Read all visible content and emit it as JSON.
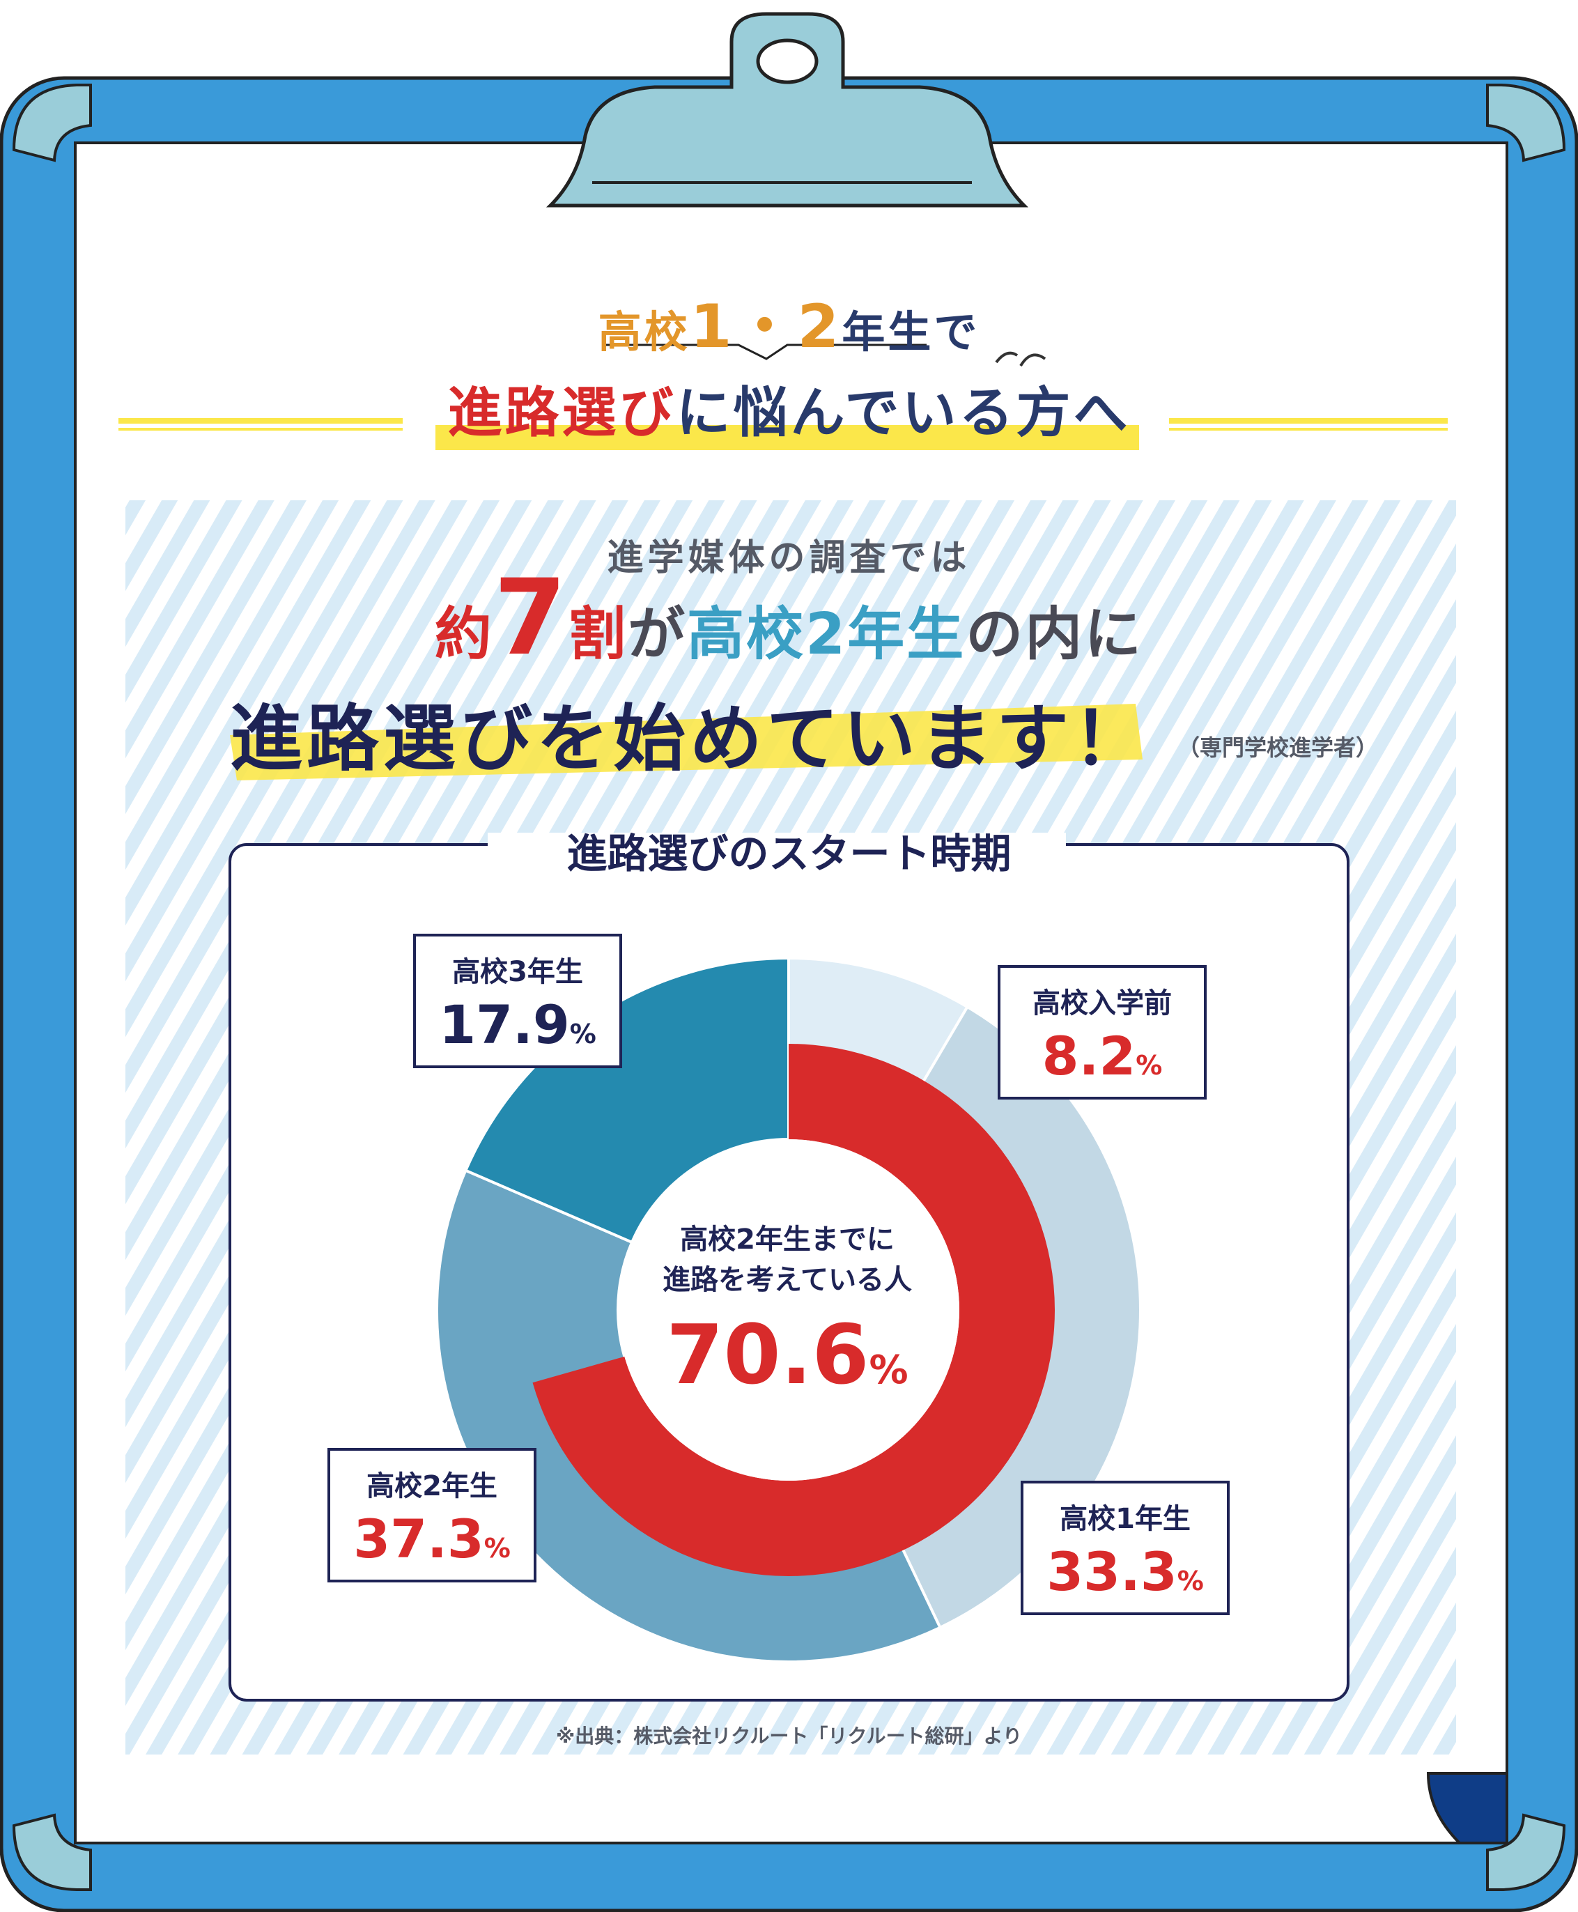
{
  "heading": {
    "line1": {
      "pre": "高校",
      "n1": "1",
      "dot": "・",
      "n2": "2",
      "post": "年生で"
    },
    "line2": {
      "red": "進路選び",
      "navy": "に悩んでいる方へ"
    }
  },
  "lead": "進学媒体の調査では",
  "headline": {
    "a": "約",
    "seven": "7",
    "b": "割",
    "c": "が",
    "d": "高校2年生",
    "e": "の内に"
  },
  "headline2": "進路選びを始めています！",
  "note": "（専門学校進学者）",
  "panel_title": "進路選びのスタート時期",
  "labels": {
    "pre": {
      "cat": "高校入学前",
      "pct": "8.2",
      "unit": "%"
    },
    "y3": {
      "cat": "高校3年生",
      "pct": "17.9",
      "unit": "%"
    },
    "y2": {
      "cat": "高校2年生",
      "pct": "37.3",
      "unit": "%"
    },
    "y1": {
      "cat": "高校1年生",
      "pct": "33.3",
      "unit": "%"
    }
  },
  "center": {
    "line1": "高校2年生までに",
    "line2": "進路を考えている人",
    "pct": "70.6",
    "unit": "%"
  },
  "source": "※出典：株式会社リクルート「リクルート総研」より",
  "colors": {
    "frame": "#3a9ad9",
    "clip": "#9acdd9",
    "red": "#d82b2b",
    "navy": "#1e2355",
    "pre": "#dfedf6",
    "y1": "#c2d8e5",
    "y2": "#6aa5c3",
    "y3": "#248aaf",
    "highlight": "#fbe74a"
  },
  "chart_data": {
    "type": "pie",
    "title": "進路選びのスタート時期",
    "categories": [
      "高校入学前",
      "高校1年生",
      "高校2年生",
      "高校3年生"
    ],
    "values": [
      8.2,
      33.3,
      37.3,
      17.9
    ],
    "summary": {
      "label": "高校2年生までに進路を考えている人",
      "value": 70.6
    }
  }
}
